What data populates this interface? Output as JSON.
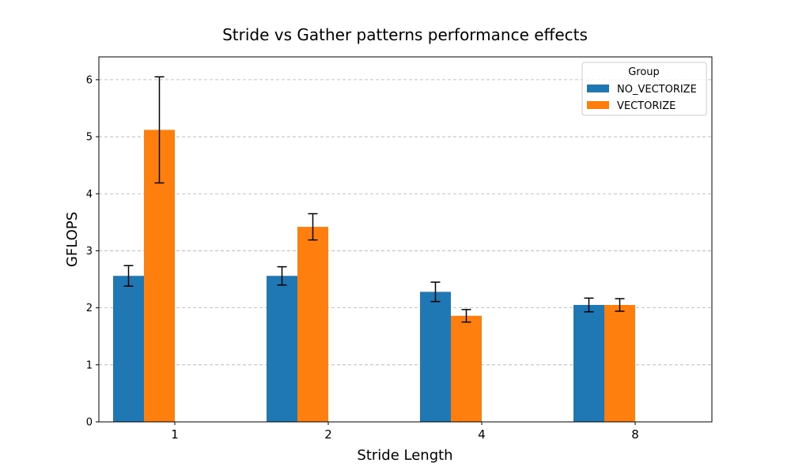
{
  "chart_data": {
    "type": "bar",
    "title": "Stride vs Gather patterns performance effects",
    "xlabel": "Stride Length",
    "ylabel": "GFLOPS",
    "categories": [
      "1",
      "2",
      "4",
      "8"
    ],
    "ylim": [
      0,
      6.4
    ],
    "yticks": [
      0,
      1,
      2,
      3,
      4,
      5,
      6
    ],
    "grid": "y-dashed",
    "legend": {
      "title": "Group",
      "position": "top-right"
    },
    "series": [
      {
        "name": "NO_VECTORIZE",
        "color": "#1f77b4",
        "values": [
          2.56,
          2.56,
          2.28,
          2.05
        ],
        "errors": [
          0.18,
          0.16,
          0.17,
          0.12
        ]
      },
      {
        "name": "VECTORIZE",
        "color": "#ff7f0e",
        "values": [
          5.12,
          3.42,
          1.86,
          2.05
        ],
        "errors": [
          0.93,
          0.23,
          0.11,
          0.11
        ]
      }
    ]
  }
}
